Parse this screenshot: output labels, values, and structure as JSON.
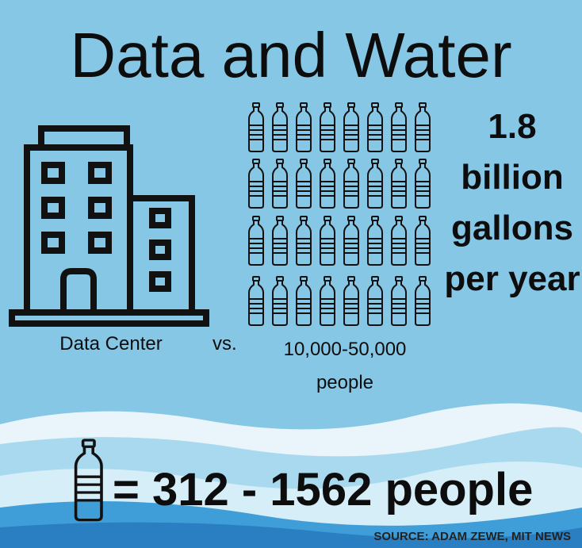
{
  "title": "Data and Water",
  "left_label": "Data Center",
  "versus": "vs.",
  "people_label": "10,000-50,000 people",
  "usage": "1.8 billion gallons per year",
  "equation": "= 312 - 1562 people",
  "source": "SOURCE: ADAM ZEWE, MIT NEWS"
}
